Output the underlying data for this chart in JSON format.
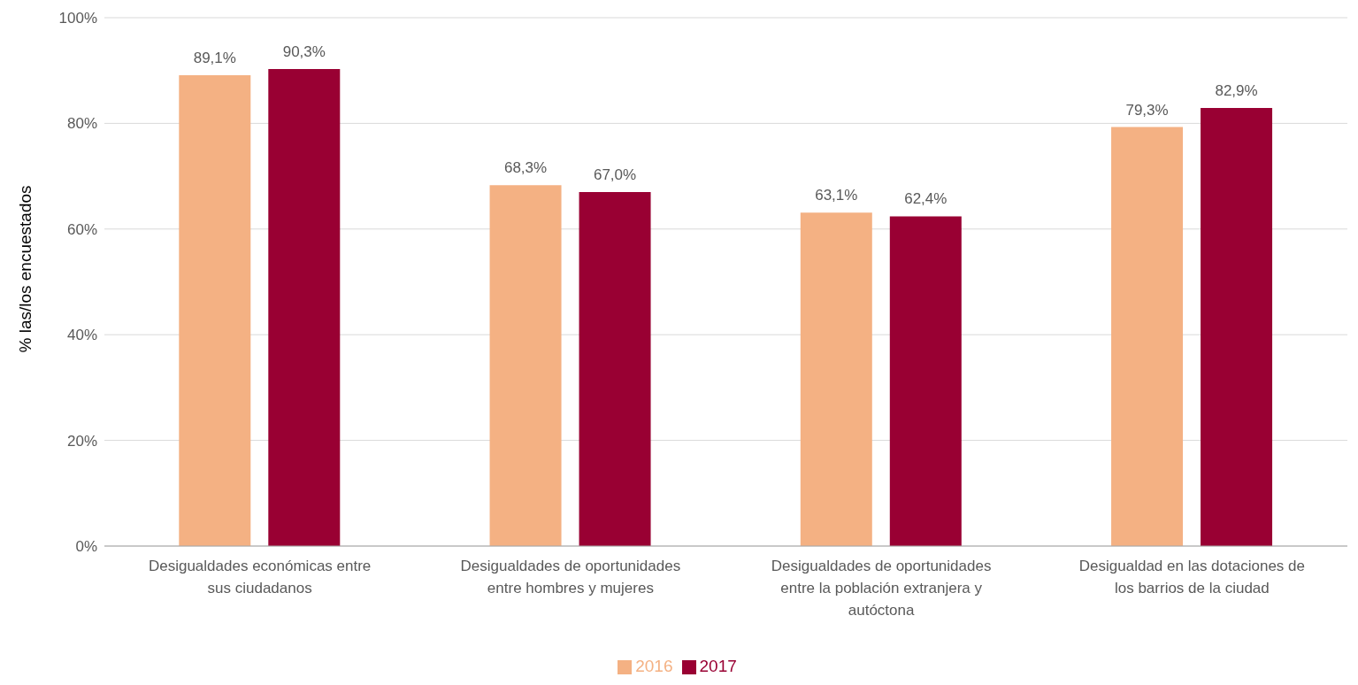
{
  "chart_data": {
    "type": "bar",
    "ylabel": "% las/los encuestados",
    "categories": [
      "Desigualdades económicas entre sus ciudadanos",
      "Desigualdades de oportunidades entre hombres y mujeres",
      "Desigualdades de oportunidades entre la población extranjera y autóctona",
      "Desigualdad en las dotaciones de los barrios de la ciudad"
    ],
    "series": [
      {
        "name": "2016",
        "color": "#f4b183",
        "values": [
          89.1,
          68.3,
          63.1,
          79.3
        ],
        "value_labels": [
          "89,1%",
          "68,3%",
          "63,1%",
          "79,3%"
        ]
      },
      {
        "name": "2017",
        "color": "#990033",
        "values": [
          90.3,
          67.0,
          62.4,
          82.9
        ],
        "value_labels": [
          "90,3%",
          "67,0%",
          "62,4%",
          "82,9%"
        ]
      }
    ],
    "ylim": [
      0,
      100
    ],
    "yticks": [
      {
        "value": 0,
        "label": "0%"
      },
      {
        "value": 20,
        "label": "20%"
      },
      {
        "value": 40,
        "label": "40%"
      },
      {
        "value": 60,
        "label": "60%"
      },
      {
        "value": 80,
        "label": "80%"
      },
      {
        "value": 100,
        "label": "100%"
      }
    ],
    "grid": "y",
    "legend": "bottom"
  }
}
